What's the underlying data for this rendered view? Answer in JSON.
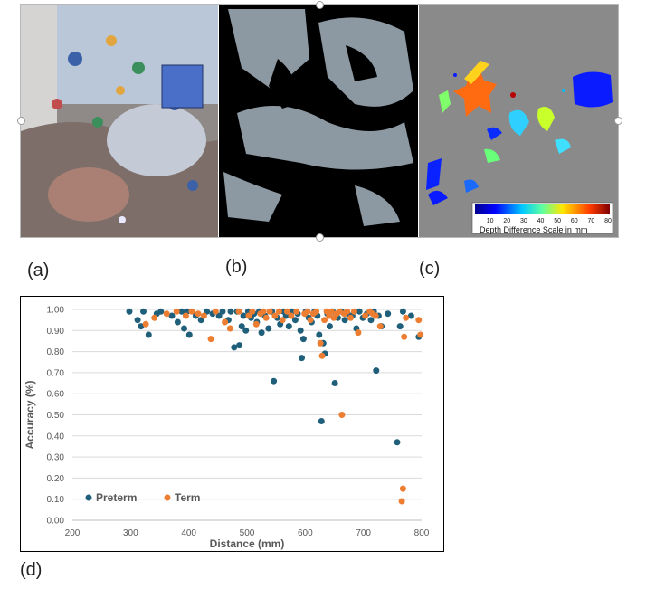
{
  "figure": {
    "labels": {
      "a": "(a)",
      "b": "(b)",
      "c": "(c)",
      "d": "(d)"
    },
    "depth_scale": {
      "title": "Depth Difference Scale in mm",
      "ticks": [
        "10",
        "20",
        "30",
        "40",
        "50",
        "60",
        "70",
        "80"
      ]
    }
  },
  "chart_data": {
    "type": "scatter",
    "title": "",
    "xlabel": "Distance (mm)",
    "ylabel": "Accuracy (%)",
    "xlim": [
      200,
      800
    ],
    "ylim": [
      0,
      1
    ],
    "x_ticks": [
      "200",
      "300",
      "400",
      "500",
      "600",
      "700",
      "800"
    ],
    "y_ticks": [
      "0.00",
      "0.10",
      "0.20",
      "0.30",
      "0.40",
      "0.50",
      "0.60",
      "0.70",
      "0.80",
      "0.90",
      "1.00"
    ],
    "grid": "horizontal",
    "legend": "bottom-left",
    "series": [
      {
        "name": "Preterm",
        "color": "#1f5f7a",
        "points": [
          [
            298,
            0.99
          ],
          [
            312,
            0.95
          ],
          [
            318,
            0.92
          ],
          [
            322,
            0.99
          ],
          [
            331,
            0.88
          ],
          [
            345,
            0.98
          ],
          [
            352,
            0.99
          ],
          [
            371,
            0.97
          ],
          [
            381,
            0.94
          ],
          [
            388,
            0.99
          ],
          [
            392,
            0.91
          ],
          [
            397,
            0.99
          ],
          [
            401,
            0.88
          ],
          [
            412,
            0.97
          ],
          [
            421,
            0.95
          ],
          [
            431,
            0.99
          ],
          [
            441,
            0.98
          ],
          [
            452,
            0.97
          ],
          [
            458,
            0.99
          ],
          [
            468,
            0.95
          ],
          [
            472,
            0.99
          ],
          [
            478,
            0.82
          ],
          [
            483,
            0.99
          ],
          [
            487,
            0.83
          ],
          [
            491,
            0.92
          ],
          [
            494,
            0.97
          ],
          [
            498,
            0.9
          ],
          [
            502,
            0.99
          ],
          [
            507,
            0.96
          ],
          [
            512,
            0.98
          ],
          [
            517,
            0.94
          ],
          [
            521,
            0.99
          ],
          [
            525,
            0.89
          ],
          [
            531,
            0.97
          ],
          [
            537,
            0.91
          ],
          [
            543,
            0.99
          ],
          [
            546,
            0.66
          ],
          [
            552,
            0.96
          ],
          [
            557,
            0.93
          ],
          [
            563,
            0.99
          ],
          [
            567,
            0.97
          ],
          [
            572,
            0.92
          ],
          [
            577,
            0.99
          ],
          [
            583,
            0.95
          ],
          [
            587,
            0.98
          ],
          [
            592,
            0.9
          ],
          [
            594,
            0.77
          ],
          [
            597,
            0.86
          ],
          [
            601,
            0.99
          ],
          [
            606,
            0.96
          ],
          [
            611,
            0.94
          ],
          [
            616,
            0.99
          ],
          [
            621,
            0.97
          ],
          [
            624,
            0.88
          ],
          [
            628,
            0.47
          ],
          [
            631,
            0.84
          ],
          [
            634,
            0.79
          ],
          [
            638,
            0.98
          ],
          [
            642,
            0.92
          ],
          [
            647,
            0.99
          ],
          [
            651,
            0.65
          ],
          [
            656,
            0.96
          ],
          [
            662,
            0.99
          ],
          [
            668,
            0.95
          ],
          [
            673,
            0.98
          ],
          [
            681,
            0.97
          ],
          [
            688,
            0.91
          ],
          [
            693,
            0.99
          ],
          [
            699,
            0.96
          ],
          [
            706,
            0.98
          ],
          [
            713,
            0.95
          ],
          [
            718,
            0.99
          ],
          [
            722,
            0.71
          ],
          [
            726,
            0.97
          ],
          [
            731,
            0.92
          ],
          [
            742,
            0.98
          ],
          [
            758,
            0.37
          ],
          [
            763,
            0.92
          ],
          [
            768,
            0.99
          ],
          [
            782,
            0.97
          ],
          [
            795,
            0.87
          ]
        ]
      },
      {
        "name": "Term",
        "color": "#ed7d31",
        "points": [
          [
            326,
            0.93
          ],
          [
            341,
            0.96
          ],
          [
            362,
            0.98
          ],
          [
            379,
            0.99
          ],
          [
            395,
            0.97
          ],
          [
            405,
            0.99
          ],
          [
            416,
            0.98
          ],
          [
            426,
            0.97
          ],
          [
            438,
            0.86
          ],
          [
            446,
            0.99
          ],
          [
            462,
            0.94
          ],
          [
            471,
            0.91
          ],
          [
            486,
            0.99
          ],
          [
            503,
            0.97
          ],
          [
            509,
            0.99
          ],
          [
            516,
            0.93
          ],
          [
            523,
            0.98
          ],
          [
            528,
            0.99
          ],
          [
            533,
            0.96
          ],
          [
            539,
            0.99
          ],
          [
            548,
            0.97
          ],
          [
            555,
            0.99
          ],
          [
            561,
            0.95
          ],
          [
            569,
            0.99
          ],
          [
            576,
            0.97
          ],
          [
            585,
            0.99
          ],
          [
            599,
            0.98
          ],
          [
            604,
            0.99
          ],
          [
            609,
            0.95
          ],
          [
            614,
            0.98
          ],
          [
            619,
            0.99
          ],
          [
            626,
            0.84
          ],
          [
            629,
            0.78
          ],
          [
            633,
            0.95
          ],
          [
            637,
            0.99
          ],
          [
            641,
            0.97
          ],
          [
            645,
            0.99
          ],
          [
            649,
            0.96
          ],
          [
            654,
            0.98
          ],
          [
            659,
            0.99
          ],
          [
            663,
            0.5
          ],
          [
            667,
            0.98
          ],
          [
            672,
            0.99
          ],
          [
            678,
            0.96
          ],
          [
            684,
            0.99
          ],
          [
            691,
            0.89
          ],
          [
            703,
            0.97
          ],
          [
            711,
            0.99
          ],
          [
            716,
            0.98
          ],
          [
            721,
            0.97
          ],
          [
            729,
            0.92
          ],
          [
            766,
            0.09
          ],
          [
            768,
            0.15
          ],
          [
            770,
            0.87
          ],
          [
            773,
            0.96
          ],
          [
            795,
            0.95
          ],
          [
            798,
            0.88
          ]
        ]
      }
    ]
  }
}
